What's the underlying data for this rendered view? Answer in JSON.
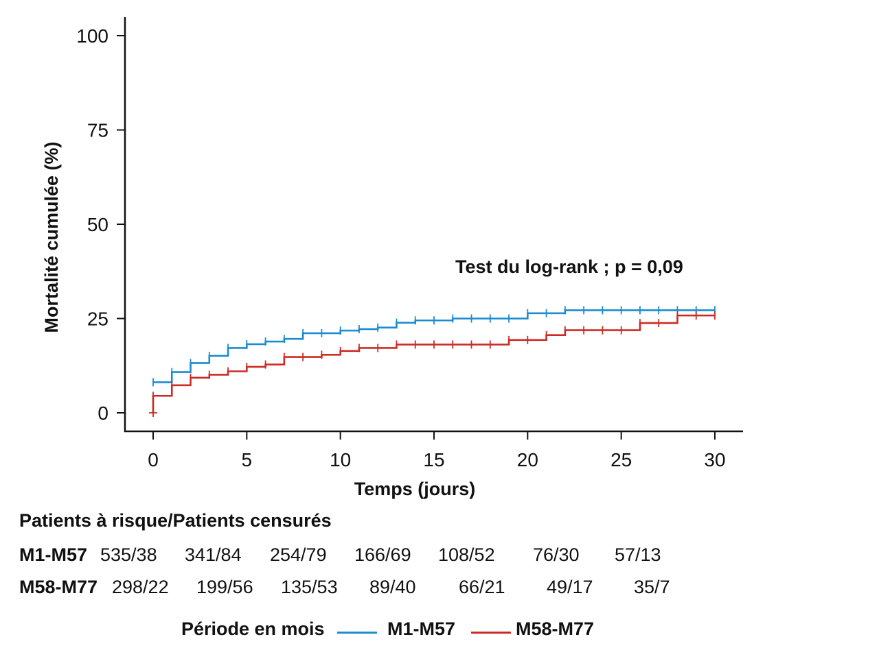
{
  "colors": {
    "series1": "#1a8ccf",
    "series2": "#cc2b24",
    "axis": "#111111"
  },
  "chart_data": {
    "type": "line",
    "subtype": "kaplan-meier step curve (cumulative mortality)",
    "xlabel": "Temps (jours)",
    "ylabel": "Mortalité cumulée (%)",
    "xlim": [
      0,
      30
    ],
    "ylim": [
      0,
      100
    ],
    "xticks": [
      "0",
      "5",
      "10",
      "15",
      "20",
      "25",
      "30"
    ],
    "yticks": [
      "0",
      "25",
      "50",
      "75",
      "100"
    ],
    "grid": false,
    "annotation": "Test du log-rank ; p = 0,09",
    "series": [
      {
        "name": "M1-M57",
        "color": "#1a8ccf",
        "steps": [
          [
            0,
            8.1
          ],
          [
            1,
            10.8
          ],
          [
            2,
            13.2
          ],
          [
            3,
            15.1
          ],
          [
            4,
            17.2
          ],
          [
            5,
            18.2
          ],
          [
            6,
            18.9
          ],
          [
            7,
            19.6
          ],
          [
            8,
            21.1
          ],
          [
            10,
            21.8
          ],
          [
            11,
            22.2
          ],
          [
            12,
            22.6
          ],
          [
            13,
            23.9
          ],
          [
            14,
            24.5
          ],
          [
            16,
            25.0
          ],
          [
            20,
            26.4
          ],
          [
            22,
            27.2
          ],
          [
            30,
            27.2
          ]
        ],
        "censor_marks": [
          0,
          1,
          2,
          3,
          4,
          5,
          6,
          7,
          8,
          9,
          10,
          11,
          12,
          13,
          14,
          15,
          16,
          17,
          18,
          19,
          20,
          21,
          22,
          23,
          24,
          25,
          26,
          27,
          28,
          29,
          30
        ]
      },
      {
        "name": "M58-M77",
        "color": "#cc2b24",
        "steps": [
          [
            0,
            0
          ],
          [
            0,
            4.5
          ],
          [
            1,
            7.3
          ],
          [
            2,
            9.3
          ],
          [
            3,
            10.1
          ],
          [
            4,
            11.0
          ],
          [
            5,
            12.2
          ],
          [
            6,
            12.8
          ],
          [
            7,
            14.8
          ],
          [
            9,
            15.4
          ],
          [
            10,
            16.4
          ],
          [
            11,
            17.2
          ],
          [
            13,
            18.1
          ],
          [
            19,
            19.3
          ],
          [
            21,
            20.6
          ],
          [
            22,
            21.9
          ],
          [
            26,
            23.8
          ],
          [
            28,
            25.8
          ],
          [
            30,
            25.8
          ]
        ],
        "censor_marks": [
          0,
          1,
          2,
          3,
          4,
          5,
          6,
          7,
          8,
          9,
          10,
          11,
          12,
          13,
          14,
          15,
          16,
          17,
          18,
          19,
          20,
          21,
          22,
          23,
          24,
          25,
          26,
          27,
          28,
          29,
          30
        ]
      }
    ]
  },
  "risk_table": {
    "title": "Patients à risque/Patients censurés",
    "rows": [
      {
        "label": "M1-M57",
        "values": [
          "535/38",
          "341/84",
          "254/79",
          "166/69",
          "108/52",
          "76/30",
          "57/13"
        ]
      },
      {
        "label": "M58-M77",
        "values": [
          "298/22",
          "199/56",
          "135/53",
          "89/40",
          "66/21",
          "49/17",
          "35/7"
        ]
      }
    ]
  },
  "legend": {
    "title": "Période en mois",
    "items": [
      {
        "name": "M1-M57",
        "color": "#1a8ccf"
      },
      {
        "name": "M58-M77",
        "color": "#cc2b24"
      }
    ]
  }
}
